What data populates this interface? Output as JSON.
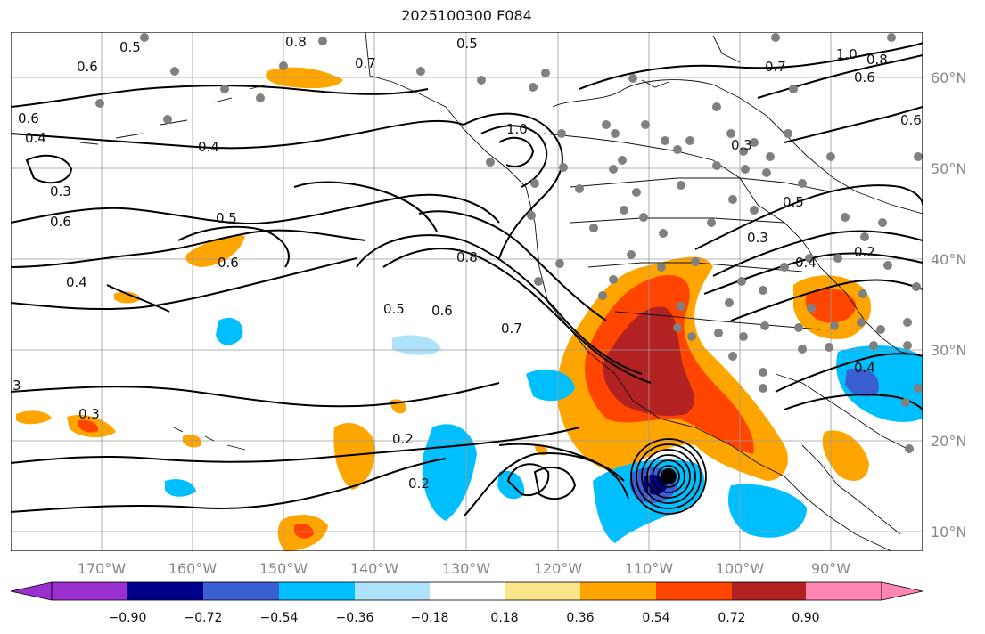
{
  "title": "2025100300 F084",
  "map": {
    "lon_labels": [
      "170°W",
      "160°W",
      "150°W",
      "140°W",
      "130°W",
      "120°W",
      "110°W",
      "100°W",
      "90°W"
    ],
    "lat_labels": [
      "60°N",
      "50°N",
      "40°N",
      "30°N",
      "20°N",
      "10°N"
    ],
    "contour_labels": [
      "0.5",
      "0.8",
      "0.7",
      "0.6",
      "0.4",
      "0.3",
      "0.6",
      "0.4",
      "0.5",
      "0.6",
      "0.6",
      "0.4",
      "0.5",
      "0.6",
      "0.7",
      "0.8",
      "0.2",
      "0.2",
      "0.3",
      "0.5",
      "1.0",
      "0.7",
      "1.0",
      "0.8",
      "0.6",
      "0.6",
      "0.3",
      "0.5",
      "0.4",
      "0.2",
      "0.4",
      "0.3",
      "3"
    ],
    "colors": {
      "purple": "#9b30d0",
      "navy": "#00008b",
      "royal": "#3a5fd0",
      "deepsky": "#00bfff",
      "lightblue": "#aee1fa",
      "white": "#ffffff",
      "lightyellow": "#fbe58a",
      "orange": "#ffa500",
      "redorange": "#ff4500",
      "darkred": "#b22222",
      "pink": "#ff85b3",
      "station": "#808080"
    }
  },
  "colorbar": {
    "labels": [
      "−0.90",
      "−0.72",
      "−0.54",
      "−0.36",
      "−0.18",
      "0.18",
      "0.36",
      "0.54",
      "0.72",
      "0.90"
    ]
  }
}
